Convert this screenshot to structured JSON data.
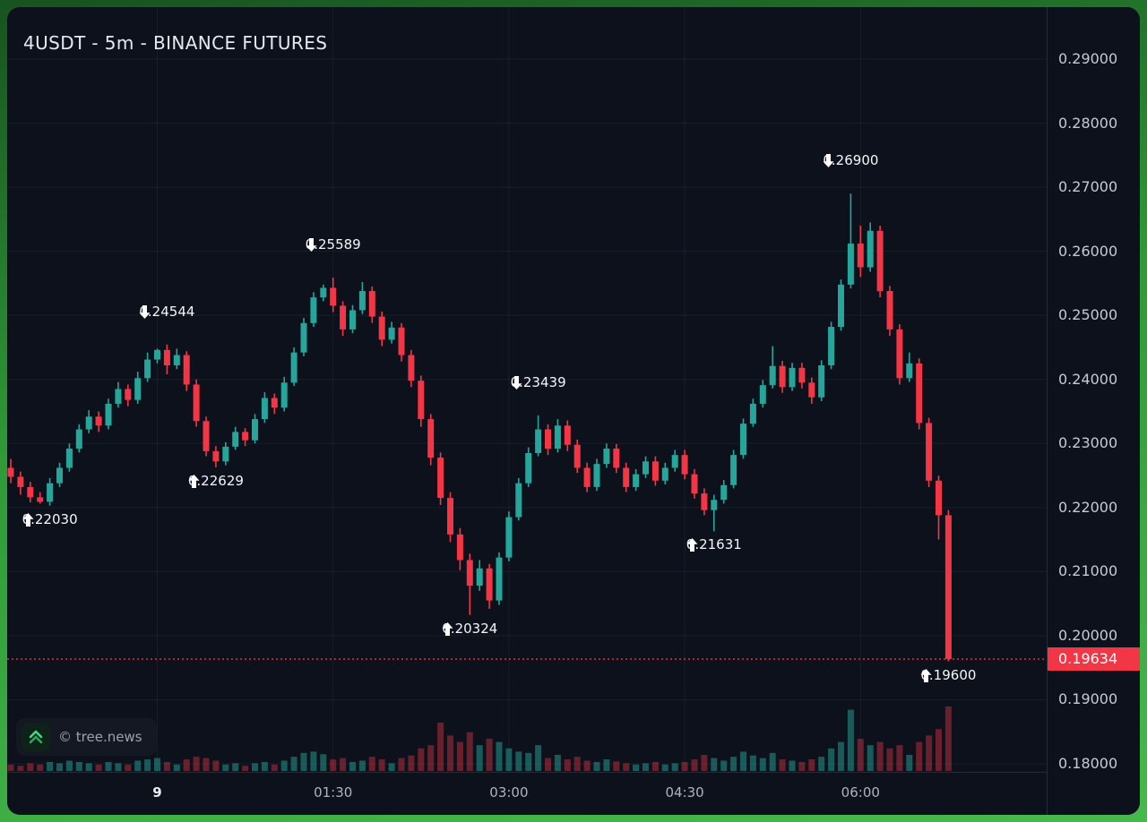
{
  "header": {
    "title": "4USDT - 5m - BINANCE FUTURES"
  },
  "watermark": {
    "label": "© tree.news",
    "logo": "double-chevron-up-icon"
  },
  "price_scale": {
    "labels": [
      "0.29000",
      "0.28000",
      "0.27000",
      "0.26000",
      "0.25000",
      "0.24000",
      "0.23000",
      "0.22000",
      "0.21000",
      "0.20000",
      "0.19000",
      "0.18000"
    ],
    "last_price": {
      "value": "0.19634",
      "color": "#f23645"
    }
  },
  "time_axis": {
    "labels": [
      {
        "text": "9",
        "index": 15,
        "major": true
      },
      {
        "text": "01:30",
        "index": 33,
        "major": false
      },
      {
        "text": "03:00",
        "index": 51,
        "major": false
      },
      {
        "text": "04:30",
        "index": 69,
        "major": false
      },
      {
        "text": "06:00",
        "index": 87,
        "major": false
      }
    ]
  },
  "colors": {
    "up": "#26a69a",
    "down": "#f23645",
    "volume_up": "rgba(38,166,154,0.50)",
    "volume_down": "rgba(242,54,69,0.40)",
    "grid": "rgba(170,180,200,0.08)",
    "background": "#0d111c",
    "border_green": "#3da844",
    "text_primary": "#e6e9ef",
    "text_secondary": "#aeb3bd",
    "last_price_line": "#f23645"
  },
  "chart_data": {
    "type": "candlestick",
    "symbol": "4USDT",
    "interval": "5m",
    "exchange": "BINANCE FUTURES",
    "title": "4USDT - 5m - BINANCE FUTURES",
    "price_range": [
      0.18,
      0.29
    ],
    "grid": true,
    "legend_position": "none",
    "x_time_labels": [
      "9",
      "01:30",
      "03:00",
      "04:30",
      "06:00"
    ],
    "last_price": 0.19634,
    "candles": [
      [
        0.2262,
        0.2276,
        0.2238,
        0.2248
      ],
      [
        0.2248,
        0.2256,
        0.222,
        0.2232
      ],
      [
        0.2232,
        0.224,
        0.2208,
        0.2216
      ],
      [
        0.2216,
        0.2224,
        0.2206,
        0.2209
      ],
      [
        0.2209,
        0.2246,
        0.2203,
        0.2238
      ],
      [
        0.2238,
        0.227,
        0.2232,
        0.2262
      ],
      [
        0.2262,
        0.23,
        0.2256,
        0.2292
      ],
      [
        0.2292,
        0.233,
        0.2286,
        0.2322
      ],
      [
        0.2322,
        0.2352,
        0.2316,
        0.2342
      ],
      [
        0.2342,
        0.235,
        0.2318,
        0.2328
      ],
      [
        0.2328,
        0.237,
        0.2322,
        0.2362
      ],
      [
        0.2362,
        0.2396,
        0.2356,
        0.2385
      ],
      [
        0.2385,
        0.2392,
        0.2358,
        0.2368
      ],
      [
        0.2368,
        0.2412,
        0.2362,
        0.2402
      ],
      [
        0.2402,
        0.2442,
        0.2396,
        0.2431
      ],
      [
        0.2431,
        0.2448,
        0.2425,
        0.2446
      ],
      [
        0.2446,
        0.24544,
        0.2408,
        0.2422
      ],
      [
        0.2422,
        0.2448,
        0.2416,
        0.2438
      ],
      [
        0.2438,
        0.2444,
        0.2382,
        0.2392
      ],
      [
        0.2392,
        0.24,
        0.2326,
        0.2335
      ],
      [
        0.2335,
        0.2342,
        0.228,
        0.2288
      ],
      [
        0.2288,
        0.2296,
        0.22629,
        0.2272
      ],
      [
        0.2272,
        0.2302,
        0.2266,
        0.2295
      ],
      [
        0.2295,
        0.2326,
        0.229,
        0.2318
      ],
      [
        0.2318,
        0.2324,
        0.2296,
        0.2305
      ],
      [
        0.2305,
        0.2346,
        0.23,
        0.2338
      ],
      [
        0.2338,
        0.238,
        0.2332,
        0.2371
      ],
      [
        0.2371,
        0.2378,
        0.2346,
        0.2356
      ],
      [
        0.2356,
        0.2404,
        0.235,
        0.2395
      ],
      [
        0.2395,
        0.245,
        0.239,
        0.2442
      ],
      [
        0.2442,
        0.2496,
        0.2436,
        0.2488
      ],
      [
        0.2488,
        0.2536,
        0.2482,
        0.2528
      ],
      [
        0.2528,
        0.2548,
        0.2522,
        0.2543
      ],
      [
        0.2543,
        0.25589,
        0.2505,
        0.2515
      ],
      [
        0.2515,
        0.2522,
        0.2468,
        0.2478
      ],
      [
        0.2478,
        0.2516,
        0.2472,
        0.2508
      ],
      [
        0.2508,
        0.2552,
        0.2502,
        0.2538
      ],
      [
        0.2538,
        0.2545,
        0.2488,
        0.2498
      ],
      [
        0.2498,
        0.2506,
        0.2452,
        0.2462
      ],
      [
        0.2462,
        0.249,
        0.2456,
        0.2481
      ],
      [
        0.2481,
        0.2488,
        0.2428,
        0.2438
      ],
      [
        0.2438,
        0.2446,
        0.2388,
        0.2398
      ],
      [
        0.2398,
        0.2406,
        0.2326,
        0.2338
      ],
      [
        0.2338,
        0.2346,
        0.2266,
        0.2278
      ],
      [
        0.2278,
        0.2286,
        0.2204,
        0.2215
      ],
      [
        0.2215,
        0.2224,
        0.2146,
        0.2158
      ],
      [
        0.2158,
        0.2168,
        0.2102,
        0.2118
      ],
      [
        0.2118,
        0.2128,
        0.20324,
        0.2078
      ],
      [
        0.2078,
        0.2118,
        0.207,
        0.2105
      ],
      [
        0.2105,
        0.2112,
        0.2042,
        0.2055
      ],
      [
        0.2055,
        0.213,
        0.2048,
        0.2122
      ],
      [
        0.2122,
        0.2194,
        0.2116,
        0.2185
      ],
      [
        0.2185,
        0.2246,
        0.218,
        0.2238
      ],
      [
        0.2238,
        0.2294,
        0.2232,
        0.2285
      ],
      [
        0.2285,
        0.23439,
        0.228,
        0.2322
      ],
      [
        0.2322,
        0.233,
        0.2282,
        0.2292
      ],
      [
        0.2292,
        0.2338,
        0.2286,
        0.2328
      ],
      [
        0.2328,
        0.2336,
        0.2288,
        0.2298
      ],
      [
        0.2298,
        0.2306,
        0.2254,
        0.2262
      ],
      [
        0.2262,
        0.227,
        0.2224,
        0.2232
      ],
      [
        0.2232,
        0.2276,
        0.2226,
        0.2268
      ],
      [
        0.2268,
        0.23,
        0.2262,
        0.2292
      ],
      [
        0.2292,
        0.2299,
        0.2254,
        0.2262
      ],
      [
        0.2262,
        0.227,
        0.2224,
        0.2232
      ],
      [
        0.2232,
        0.226,
        0.2226,
        0.2252
      ],
      [
        0.2252,
        0.228,
        0.2246,
        0.2272
      ],
      [
        0.2272,
        0.228,
        0.2234,
        0.2242
      ],
      [
        0.2242,
        0.227,
        0.2236,
        0.2262
      ],
      [
        0.2262,
        0.229,
        0.2256,
        0.2282
      ],
      [
        0.2282,
        0.229,
        0.2244,
        0.2252
      ],
      [
        0.2252,
        0.226,
        0.2214,
        0.2222
      ],
      [
        0.2222,
        0.223,
        0.2188,
        0.2196
      ],
      [
        0.2196,
        0.222,
        0.21631,
        0.2212
      ],
      [
        0.2212,
        0.2243,
        0.2206,
        0.2235
      ],
      [
        0.2235,
        0.229,
        0.223,
        0.2282
      ],
      [
        0.2282,
        0.2339,
        0.2276,
        0.2331
      ],
      [
        0.2331,
        0.237,
        0.2326,
        0.2362
      ],
      [
        0.2362,
        0.2399,
        0.2356,
        0.2391
      ],
      [
        0.2391,
        0.2452,
        0.2386,
        0.2421
      ],
      [
        0.2421,
        0.2429,
        0.2379,
        0.2388
      ],
      [
        0.2388,
        0.2426,
        0.2382,
        0.2418
      ],
      [
        0.2418,
        0.2426,
        0.2386,
        0.2395
      ],
      [
        0.2395,
        0.2403,
        0.2362,
        0.2372
      ],
      [
        0.2372,
        0.243,
        0.2366,
        0.2422
      ],
      [
        0.2422,
        0.249,
        0.2416,
        0.2482
      ],
      [
        0.2482,
        0.2556,
        0.2476,
        0.2548
      ],
      [
        0.2548,
        0.269,
        0.2542,
        0.2612
      ],
      [
        0.2612,
        0.264,
        0.256,
        0.2575
      ],
      [
        0.2575,
        0.2645,
        0.2568,
        0.2632
      ],
      [
        0.2632,
        0.264,
        0.2528,
        0.2538
      ],
      [
        0.2538,
        0.2546,
        0.2468,
        0.2478
      ],
      [
        0.2478,
        0.2486,
        0.2392,
        0.2402
      ],
      [
        0.2402,
        0.2442,
        0.2396,
        0.2425
      ],
      [
        0.2425,
        0.2433,
        0.2322,
        0.2332
      ],
      [
        0.2332,
        0.234,
        0.2232,
        0.2242
      ],
      [
        0.2242,
        0.225,
        0.215,
        0.2188
      ],
      [
        0.2188,
        0.2196,
        0.196,
        0.19634
      ]
    ],
    "volumes": [
      0.1,
      0.08,
      0.12,
      0.1,
      0.14,
      0.12,
      0.16,
      0.14,
      0.12,
      0.1,
      0.14,
      0.12,
      0.1,
      0.16,
      0.18,
      0.2,
      0.14,
      0.1,
      0.18,
      0.22,
      0.2,
      0.16,
      0.1,
      0.12,
      0.08,
      0.12,
      0.14,
      0.1,
      0.16,
      0.22,
      0.28,
      0.3,
      0.26,
      0.18,
      0.2,
      0.14,
      0.16,
      0.22,
      0.18,
      0.12,
      0.2,
      0.24,
      0.35,
      0.4,
      0.75,
      0.55,
      0.45,
      0.6,
      0.4,
      0.5,
      0.45,
      0.35,
      0.3,
      0.28,
      0.4,
      0.2,
      0.25,
      0.18,
      0.22,
      0.16,
      0.14,
      0.18,
      0.15,
      0.12,
      0.1,
      0.12,
      0.14,
      0.1,
      0.12,
      0.14,
      0.18,
      0.25,
      0.2,
      0.16,
      0.22,
      0.3,
      0.24,
      0.2,
      0.28,
      0.18,
      0.16,
      0.14,
      0.18,
      0.22,
      0.35,
      0.45,
      0.95,
      0.5,
      0.4,
      0.45,
      0.35,
      0.4,
      0.25,
      0.45,
      0.55,
      0.65,
      1.0
    ],
    "annotations": [
      {
        "index": 4,
        "text": "0.22030",
        "position": "below"
      },
      {
        "index": 16,
        "text": "0.24544",
        "position": "above"
      },
      {
        "index": 21,
        "text": "0.22629",
        "position": "below"
      },
      {
        "index": 33,
        "text": "0.25589",
        "position": "above"
      },
      {
        "index": 47,
        "text": "0.20324",
        "position": "below"
      },
      {
        "index": 54,
        "text": "0.23439",
        "position": "above"
      },
      {
        "index": 72,
        "text": "0.21631",
        "position": "below"
      },
      {
        "index": 86,
        "text": "0.26900",
        "position": "above"
      },
      {
        "index": 96,
        "text": "0.19600",
        "position": "below"
      }
    ]
  }
}
